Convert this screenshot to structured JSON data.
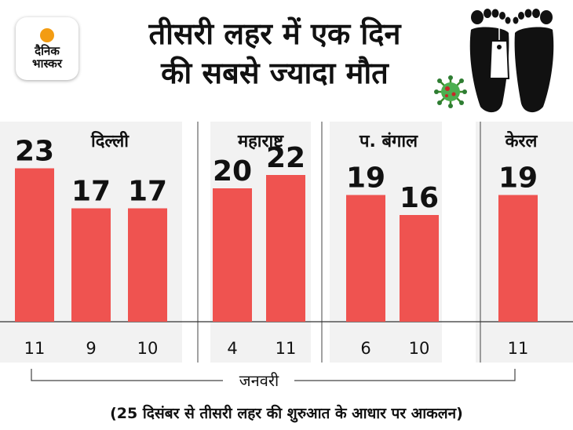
{
  "brand": {
    "logo_text_line1": "दैनिक",
    "logo_text_line2": "भास्कर",
    "accent_color": "#f39c12"
  },
  "title": {
    "line1": "तीसरी लहर में एक दिन",
    "line2": "की सबसे ज्यादा मौत"
  },
  "icons": [
    "feet-with-toe-tag-icon",
    "coronavirus-icon"
  ],
  "footnote": "(25 दिसंबर से तीसरी लहर की शुरुआत के आधार पर आकलन)",
  "chart_data": {
    "type": "bar",
    "bar_color": "#ef5350",
    "ylim": [
      0,
      25
    ],
    "x_group_label": "जनवरी",
    "groups": [
      {
        "name": "दिल्ली",
        "categories": [
          "11",
          "9",
          "10"
        ],
        "values": [
          23,
          17,
          17
        ]
      },
      {
        "name": "महाराष्ट्र",
        "categories": [
          "4",
          "11"
        ],
        "values": [
          20,
          22
        ]
      },
      {
        "name": "प. बंगाल",
        "categories": [
          "6",
          "10"
        ],
        "values": [
          19,
          16
        ]
      },
      {
        "name": "केरल",
        "categories": [
          "11"
        ],
        "values": [
          19
        ]
      }
    ]
  }
}
